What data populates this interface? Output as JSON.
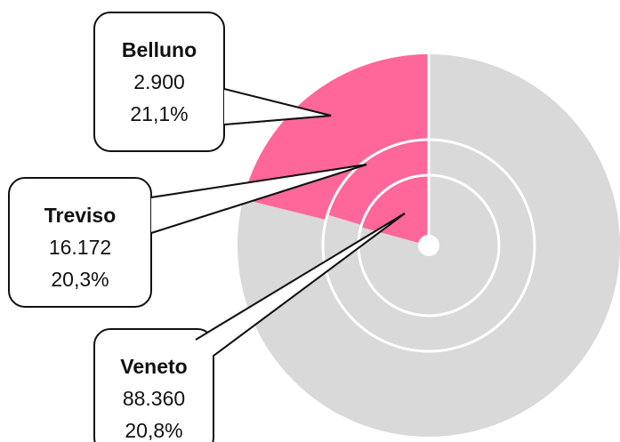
{
  "chart_data": {
    "type": "nested_pie",
    "categories": [
      "Belluno",
      "Treviso",
      "Veneto"
    ],
    "values": [
      2900,
      16172,
      88360
    ],
    "value_labels": [
      "2.900",
      "16.172",
      "88.360"
    ],
    "shares": [
      21.1,
      20.3,
      20.8
    ],
    "share_labels": [
      "21,1%",
      "20,3%",
      "20,8%"
    ],
    "color": "#ff6699",
    "rest_color": "#d9d9d9"
  }
}
